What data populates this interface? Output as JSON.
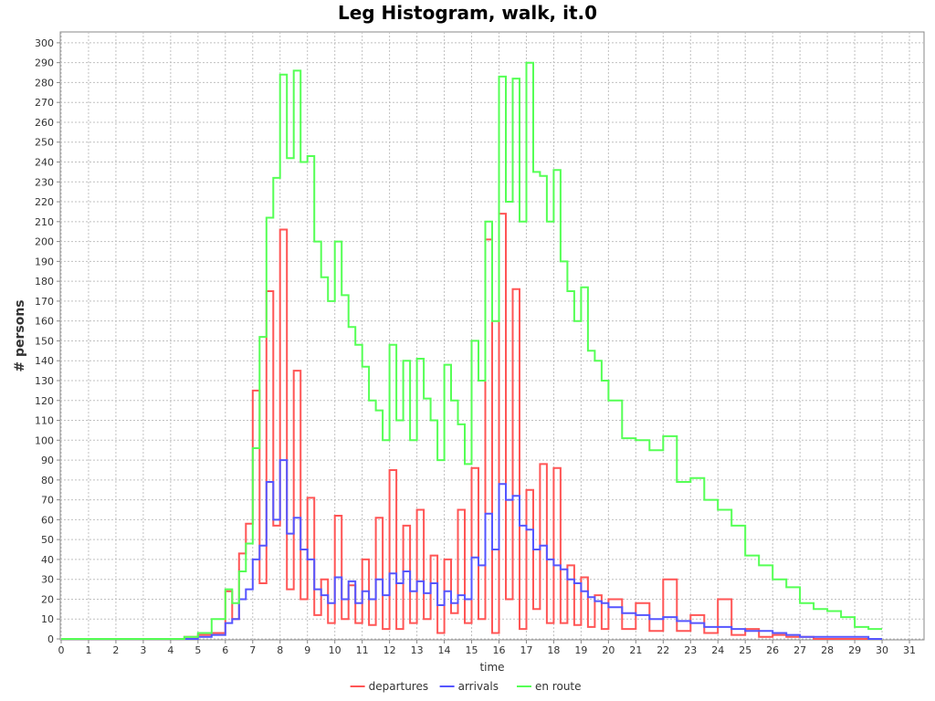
{
  "chart_data": {
    "type": "line",
    "title": "Leg Histogram, walk, it.0",
    "xlabel": "time",
    "ylabel": "# persons",
    "xlim": [
      0,
      31.5
    ],
    "ylim": [
      0,
      305
    ],
    "xticks": [
      0,
      1,
      2,
      3,
      4,
      5,
      6,
      7,
      8,
      9,
      10,
      11,
      12,
      13,
      14,
      15,
      16,
      17,
      18,
      19,
      20,
      21,
      22,
      23,
      24,
      25,
      26,
      27,
      28,
      29,
      30,
      31
    ],
    "yticks": [
      0,
      10,
      20,
      30,
      40,
      50,
      60,
      70,
      80,
      90,
      100,
      110,
      120,
      130,
      140,
      150,
      160,
      170,
      180,
      190,
      200,
      210,
      220,
      230,
      240,
      250,
      260,
      270,
      280,
      290,
      300
    ],
    "grid": true,
    "legend_position": "bottom",
    "step": true,
    "x": [
      0,
      4.5,
      5,
      5.5,
      6,
      6.25,
      6.5,
      6.75,
      7,
      7.25,
      7.5,
      7.75,
      8,
      8.25,
      8.5,
      8.75,
      9,
      9.25,
      9.5,
      9.75,
      10,
      10.25,
      10.5,
      10.75,
      11,
      11.25,
      11.5,
      11.75,
      12,
      12.25,
      12.5,
      12.75,
      13,
      13.25,
      13.5,
      13.75,
      14,
      14.25,
      14.5,
      14.75,
      15,
      15.25,
      15.5,
      15.75,
      16,
      16.25,
      16.5,
      16.75,
      17,
      17.25,
      17.5,
      17.75,
      18,
      18.25,
      18.5,
      18.75,
      19,
      19.25,
      19.5,
      19.75,
      20,
      20.5,
      21,
      21.5,
      22,
      22.5,
      23,
      23.5,
      24,
      24.5,
      25,
      25.5,
      26,
      26.5,
      27,
      27.5,
      28,
      28.5,
      29,
      29.5,
      30
    ],
    "series": [
      {
        "name": "departures",
        "color": "#ff5555",
        "values": [
          0,
          1,
          2,
          3,
          24,
          10,
          43,
          58,
          125,
          28,
          175,
          57,
          206,
          25,
          135,
          20,
          71,
          12,
          30,
          8,
          62,
          10,
          27,
          8,
          40,
          7,
          61,
          5,
          85,
          5,
          57,
          8,
          65,
          10,
          42,
          3,
          40,
          13,
          65,
          8,
          86,
          10,
          201,
          3,
          214,
          20,
          176,
          5,
          75,
          15,
          88,
          8,
          86,
          8,
          37,
          7,
          31,
          6,
          22,
          5,
          20,
          5,
          18,
          4,
          30,
          4,
          12,
          3,
          20,
          2,
          5,
          1,
          2,
          1,
          1,
          0,
          0,
          0,
          0,
          0,
          0
        ]
      },
      {
        "name": "arrivals",
        "color": "#5555ff",
        "values": [
          0,
          0,
          1,
          2,
          8,
          10,
          20,
          25,
          40,
          47,
          79,
          60,
          90,
          53,
          61,
          45,
          40,
          25,
          22,
          18,
          31,
          20,
          29,
          18,
          24,
          20,
          30,
          22,
          33,
          28,
          34,
          24,
          29,
          23,
          28,
          17,
          24,
          18,
          22,
          20,
          41,
          37,
          63,
          45,
          78,
          70,
          72,
          57,
          55,
          45,
          47,
          40,
          37,
          35,
          30,
          28,
          24,
          21,
          19,
          18,
          16,
          13,
          12,
          10,
          11,
          9,
          8,
          6,
          6,
          5,
          4,
          4,
          3,
          2,
          1,
          1,
          1,
          1,
          1,
          0,
          0
        ]
      },
      {
        "name": "en route",
        "color": "#55ff55",
        "values": [
          0,
          1,
          3,
          10,
          25,
          18,
          34,
          48,
          96,
          152,
          212,
          232,
          284,
          242,
          286,
          240,
          243,
          200,
          182,
          170,
          200,
          173,
          157,
          148,
          137,
          120,
          115,
          100,
          148,
          110,
          140,
          100,
          141,
          121,
          110,
          90,
          138,
          120,
          108,
          88,
          150,
          130,
          210,
          160,
          283,
          220,
          282,
          210,
          290,
          235,
          233,
          210,
          236,
          190,
          175,
          160,
          177,
          145,
          140,
          130,
          120,
          101,
          100,
          95,
          102,
          79,
          81,
          70,
          65,
          57,
          42,
          37,
          30,
          26,
          18,
          15,
          14,
          11,
          6,
          5,
          5
        ]
      }
    ]
  }
}
